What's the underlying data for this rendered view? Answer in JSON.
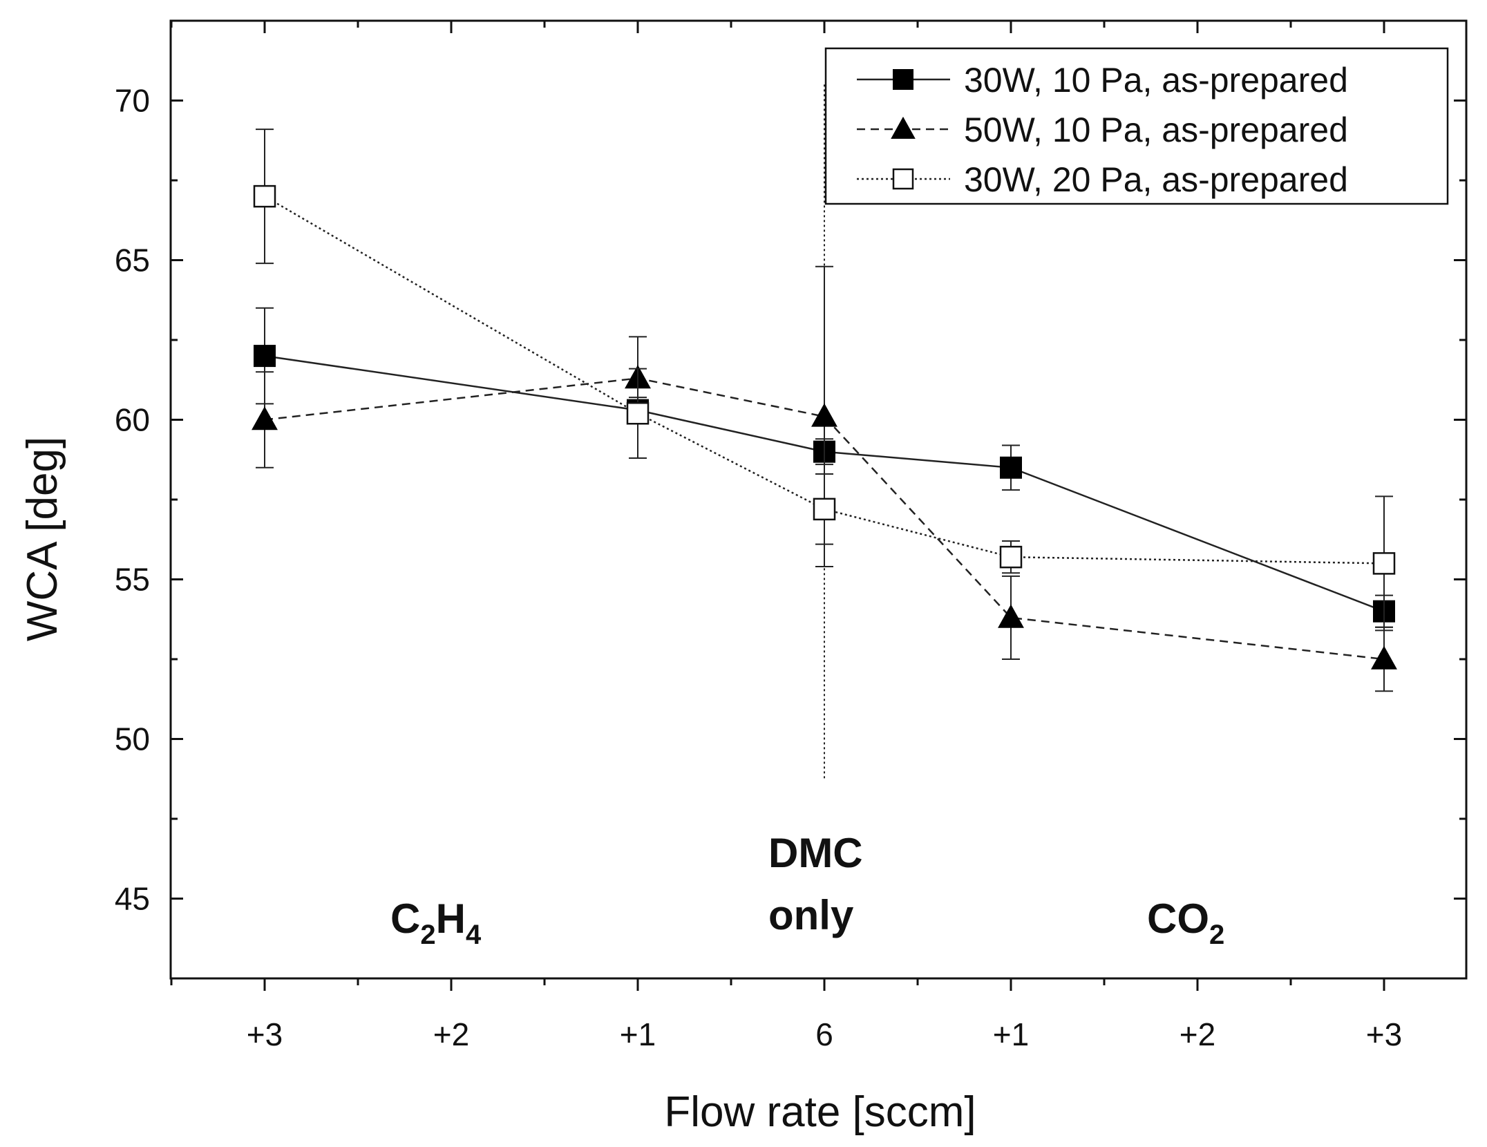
{
  "chart_data": {
    "type": "line",
    "xlabel": "Flow rate [sccm]",
    "ylabel": "WCA [deg]",
    "ylim": [
      42.5,
      72.5
    ],
    "y_ticks": [
      45,
      50,
      55,
      60,
      65,
      70
    ],
    "x_positions": [
      0,
      1,
      2,
      3,
      4,
      5,
      6
    ],
    "categories": [
      "+3",
      "+2",
      "+1",
      "6",
      "+1",
      "+2",
      "+3"
    ],
    "grid": false,
    "legend_position": "top-right",
    "regions": [
      {
        "main": "C",
        "sub1": "2",
        "mid": "H",
        "sub2": "4",
        "label": "C2H4"
      },
      {
        "line1": "DMC",
        "line2": "only"
      },
      {
        "main": "CO",
        "sub1": "2",
        "label": "CO2"
      }
    ],
    "reference_line": {
      "x": 3,
      "style": "dotted"
    },
    "series": [
      {
        "name": "30W, 10 Pa, as-prepared",
        "marker": "filled-square",
        "line_style": "solid",
        "x": [
          0,
          2,
          3,
          4,
          6
        ],
        "y": [
          62.0,
          60.3,
          59.0,
          58.5,
          54.0
        ],
        "err": [
          1.5,
          0.4,
          0.4,
          0.7,
          0.5
        ]
      },
      {
        "name": "50W, 10 Pa, as-prepared",
        "marker": "filled-triangle",
        "line_style": "dashed",
        "x": [
          0,
          2,
          3,
          4,
          6
        ],
        "y": [
          60.0,
          61.3,
          60.1,
          53.8,
          52.5
        ],
        "err": [
          1.5,
          1.3,
          4.7,
          1.3,
          1.0
        ]
      },
      {
        "name": "30W, 20 Pa, as-prepared",
        "marker": "open-square",
        "line_style": "dotted",
        "x": [
          0,
          2,
          3,
          4,
          6
        ],
        "y": [
          67.0,
          60.2,
          57.2,
          55.7,
          55.5
        ],
        "err": [
          2.1,
          1.4,
          1.1,
          0.5,
          2.1
        ]
      }
    ]
  }
}
